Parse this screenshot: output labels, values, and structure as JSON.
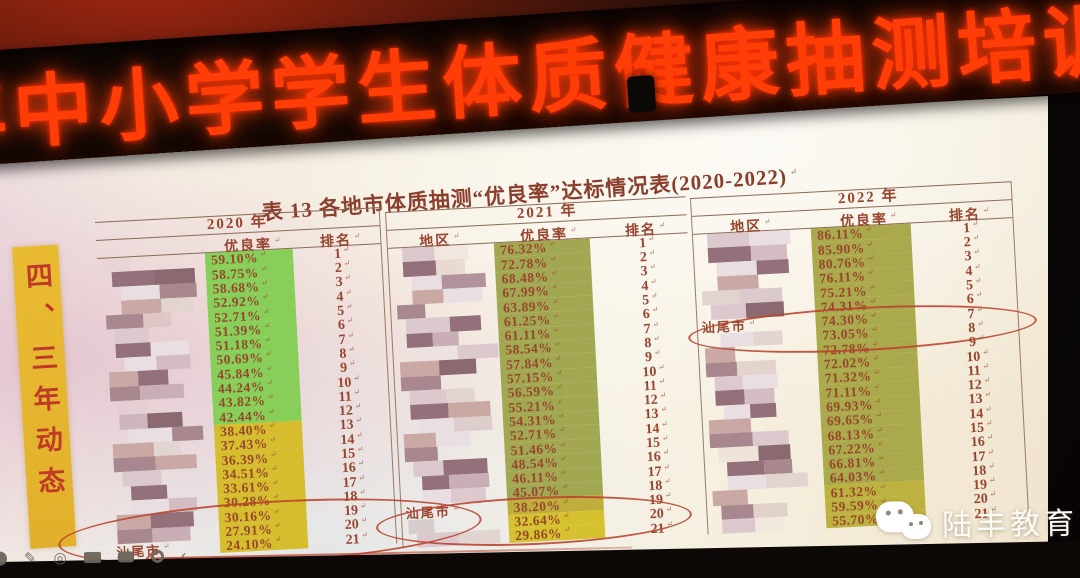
{
  "banner": {
    "left_partial": "年",
    "text": "中小学学生体质健康抽测培",
    "right_partial": "训",
    "led_color": "#ff3d06"
  },
  "slide": {
    "side_tab": "四、三年动态",
    "title": "表 13 各地市体质抽测“优良率”达标情况表(2020-2022)",
    "table": {
      "years": [
        {
          "year_label": "2020 年",
          "region_header": "",
          "rate_header": "优良率",
          "rank_header": "排名",
          "rates": [
            "59.10%",
            "58.75%",
            "58.68%",
            "52.92%",
            "52.71%",
            "51.39%",
            "51.18%",
            "50.69%",
            "45.84%",
            "44.24%",
            "43.82%",
            "42.44%",
            "38.40%",
            "37.43%",
            "36.39%",
            "34.51%",
            "33.61%",
            "30.28%",
            "30.16%",
            "27.91%",
            "24.10%"
          ],
          "ranks": [
            "1",
            "2",
            "3",
            "4",
            "5",
            "6",
            "7",
            "8",
            "9",
            "10",
            "11",
            "12",
            "13",
            "14",
            "15",
            "16",
            "17",
            "18",
            "19",
            "20",
            "21"
          ],
          "regions": {
            "21": "汕尾市"
          },
          "circled_rank": "21",
          "rate_bg_bands": [
            {
              "from": 1,
              "to": 12,
              "color": "#87cf58"
            },
            {
              "from": 13,
              "to": 21,
              "color": "#d6bd2e"
            }
          ]
        },
        {
          "year_label": "2021 年",
          "region_header": "地区",
          "rate_header": "优良率",
          "rank_header": "排名",
          "rates": [
            "76.32%",
            "72.78%",
            "68.48%",
            "67.99%",
            "63.89%",
            "61.25%",
            "61.11%",
            "58.54%",
            "57.84%",
            "57.15%",
            "56.59%",
            "55.21%",
            "54.31%",
            "52.71%",
            "51.46%",
            "48.54%",
            "46.11%",
            "45.07%",
            "38.20%",
            "32.64%",
            "29.86%"
          ],
          "ranks": [
            "1",
            "2",
            "3",
            "4",
            "5",
            "6",
            "7",
            "8",
            "9",
            "10",
            "11",
            "12",
            "13",
            "14",
            "15",
            "16",
            "17",
            "18",
            "19",
            "20",
            "21"
          ],
          "regions": {
            "19": "汕尾市"
          },
          "circled_rank": "19",
          "rate_bg_bands": [
            {
              "from": 1,
              "to": 18,
              "color": "#a2a852"
            },
            {
              "from": 19,
              "to": 19,
              "color": "#bfae3d"
            },
            {
              "from": 20,
              "to": 21,
              "color": "#d6c231"
            }
          ]
        },
        {
          "year_label": "2022 年",
          "region_header": "地区",
          "rate_header": "优良率",
          "rank_header": "排名",
          "rates": [
            "86.11%",
            "85.90%",
            "80.76%",
            "76.11%",
            "75.21%",
            "74.31%",
            "74.30%",
            "73.05%",
            "72.78%",
            "72.02%",
            "71.32%",
            "71.11%",
            "69.93%",
            "69.65%",
            "68.13%",
            "67.22%",
            "66.81%",
            "64.03%",
            "61.32%",
            "59.59%",
            "55.70%"
          ],
          "ranks": [
            "1",
            "2",
            "3",
            "4",
            "5",
            "6",
            "7",
            "8",
            "9",
            "10",
            "11",
            "12",
            "13",
            "14",
            "15",
            "16",
            "17",
            "18",
            "19",
            "20",
            "21"
          ],
          "regions": {
            "7": "汕尾市"
          },
          "circled_rank": "7",
          "rate_bg_bands": [
            {
              "from": 1,
              "to": 18,
              "color": "#aaa94b"
            },
            {
              "from": 19,
              "to": 21,
              "color": "#bdb23f"
            }
          ]
        }
      ]
    },
    "annotations": {
      "circled_rows": [
        {
          "year": "2020 年",
          "region": "汕尾市",
          "rate": "24.10%",
          "rank": "21"
        },
        {
          "year": "2021 年",
          "region": "汕尾市",
          "rate": "38.20%",
          "rank": "19"
        },
        {
          "year": "2022 年",
          "region": "汕尾市",
          "rate": "74.30%",
          "rank": "7"
        }
      ],
      "pen_color": "#ba422c"
    },
    "text_color": "#98452f"
  },
  "watermark": {
    "label": "陆丰教育"
  },
  "toolbar": {
    "icons": [
      "circle-tool",
      "pen-tool",
      "laser-tool",
      "board-tool",
      "comment-tool",
      "eraser-tool",
      "undo-arrow"
    ]
  },
  "mosaic_palette": [
    "#dcc9ce",
    "#c9aeb5",
    "#93707a",
    "#d3bcc2",
    "#e9dee1",
    "#b2939b",
    "#caa9a4",
    "#e2d4d0",
    "#a9878f",
    "#8a6a70"
  ]
}
